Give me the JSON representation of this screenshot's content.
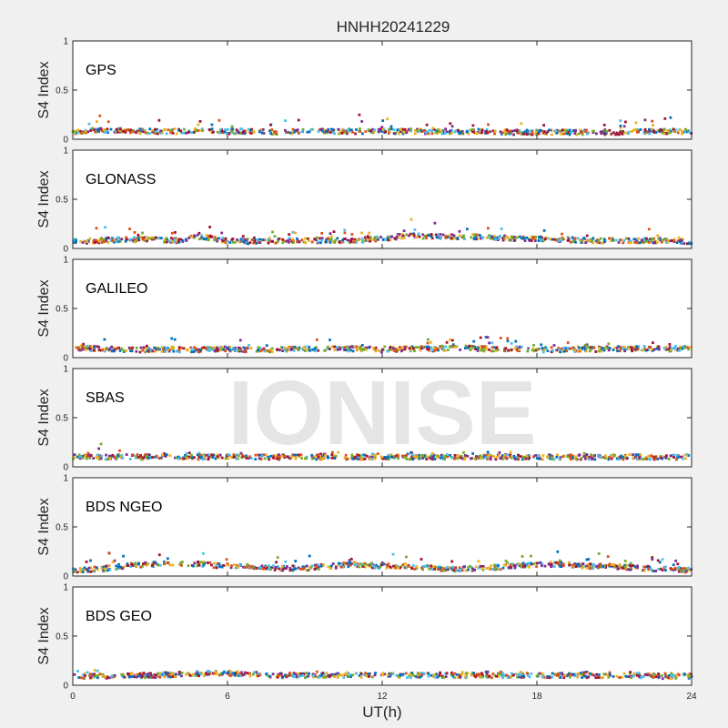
{
  "figure": {
    "title": "HNHH20241229",
    "xlabel": "UT(h)",
    "watermark": "IONISE"
  },
  "colors": [
    "#0072bd",
    "#d95319",
    "#edb120",
    "#7e2f8e",
    "#77ac30",
    "#4dbeee",
    "#a2142f"
  ],
  "chart_data": [
    {
      "type": "scatter",
      "panel": "GPS",
      "ylabel": "S4 Index",
      "xlim": [
        0,
        24
      ],
      "ylim": [
        0,
        1
      ],
      "xticks": [
        0,
        6,
        12,
        18,
        24
      ],
      "yticks": [
        0,
        0.5,
        1
      ],
      "series_profile": {
        "x": [
          0,
          1,
          2,
          3,
          4,
          5,
          6,
          7,
          8,
          9,
          10,
          11,
          12,
          13,
          14,
          15,
          16,
          17,
          18,
          19,
          20,
          21,
          22,
          23,
          24
        ],
        "typical_s4": [
          0.08,
          0.09,
          0.09,
          0.08,
          0.08,
          0.09,
          0.08,
          0.08,
          0.07,
          0.08,
          0.08,
          0.08,
          0.08,
          0.08,
          0.08,
          0.08,
          0.08,
          0.07,
          0.07,
          0.07,
          0.07,
          0.07,
          0.08,
          0.08,
          0.08
        ],
        "peak_s4": [
          0.14,
          0.28,
          0.26,
          0.22,
          0.2,
          0.22,
          0.2,
          0.22,
          0.2,
          0.2,
          0.22,
          0.26,
          0.22,
          0.2,
          0.18,
          0.17,
          0.2,
          0.18,
          0.17,
          0.16,
          0.16,
          0.18,
          0.22,
          0.24,
          0.16
        ]
      }
    },
    {
      "type": "scatter",
      "panel": "GLONASS",
      "ylabel": "S4 Index",
      "xlim": [
        0,
        24
      ],
      "ylim": [
        0,
        1
      ],
      "xticks": [
        0,
        6,
        12,
        18,
        24
      ],
      "yticks": [
        0,
        0.5,
        1
      ],
      "series_profile": {
        "x": [
          0,
          1,
          2,
          3,
          4,
          5,
          6,
          7,
          8,
          9,
          10,
          11,
          12,
          13,
          14,
          15,
          16,
          17,
          18,
          19,
          20,
          21,
          22,
          23,
          24
        ],
        "typical_s4": [
          0.07,
          0.08,
          0.09,
          0.09,
          0.08,
          0.12,
          0.08,
          0.07,
          0.08,
          0.08,
          0.08,
          0.08,
          0.1,
          0.13,
          0.12,
          0.12,
          0.12,
          0.1,
          0.1,
          0.09,
          0.08,
          0.08,
          0.08,
          0.08,
          0.07
        ],
        "peak_s4": [
          0.15,
          0.22,
          0.25,
          0.2,
          0.2,
          0.25,
          0.2,
          0.16,
          0.18,
          0.18,
          0.22,
          0.2,
          0.24,
          0.32,
          0.26,
          0.2,
          0.22,
          0.2,
          0.2,
          0.2,
          0.18,
          0.2,
          0.28,
          0.22,
          0.12
        ]
      }
    },
    {
      "type": "scatter",
      "panel": "GALILEO",
      "ylabel": "S4 Index",
      "xlim": [
        0,
        24
      ],
      "ylim": [
        0,
        1
      ],
      "xticks": [
        0,
        6,
        12,
        18,
        24
      ],
      "yticks": [
        0,
        0.5,
        1
      ],
      "series_profile": {
        "x": [
          0,
          1,
          2,
          3,
          4,
          5,
          6,
          7,
          8,
          9,
          10,
          11,
          12,
          13,
          14,
          15,
          16,
          17,
          18,
          19,
          20,
          21,
          22,
          23,
          24
        ],
        "typical_s4": [
          0.1,
          0.09,
          0.08,
          0.08,
          0.08,
          0.08,
          0.09,
          0.08,
          0.08,
          0.09,
          0.09,
          0.09,
          0.08,
          0.09,
          0.09,
          0.1,
          0.09,
          0.09,
          0.08,
          0.08,
          0.08,
          0.09,
          0.09,
          0.09,
          0.09
        ],
        "peak_s4": [
          0.18,
          0.28,
          0.16,
          0.14,
          0.22,
          0.16,
          0.18,
          0.24,
          0.2,
          0.18,
          0.2,
          0.16,
          0.16,
          0.16,
          0.2,
          0.2,
          0.22,
          0.2,
          0.16,
          0.16,
          0.14,
          0.16,
          0.16,
          0.16,
          0.16
        ]
      }
    },
    {
      "type": "scatter",
      "panel": "SBAS",
      "ylabel": "S4 Index",
      "xlim": [
        0,
        24
      ],
      "ylim": [
        0,
        1
      ],
      "xticks": [
        0,
        6,
        12,
        18,
        24
      ],
      "yticks": [
        0,
        0.5,
        1
      ],
      "series_profile": {
        "x": [
          0,
          1,
          2,
          3,
          4,
          5,
          6,
          7,
          8,
          9,
          10,
          11,
          12,
          13,
          14,
          15,
          16,
          17,
          18,
          19,
          20,
          21,
          22,
          23,
          24
        ],
        "typical_s4": [
          0.1,
          0.1,
          0.1,
          0.1,
          0.1,
          0.1,
          0.1,
          0.1,
          0.1,
          0.1,
          0.1,
          0.1,
          0.1,
          0.1,
          0.1,
          0.1,
          0.1,
          0.1,
          0.1,
          0.1,
          0.1,
          0.1,
          0.1,
          0.1,
          0.1
        ],
        "peak_s4": [
          0.15,
          0.25,
          0.16,
          0.15,
          0.15,
          0.15,
          0.15,
          0.15,
          0.15,
          0.17,
          0.15,
          0.15,
          0.15,
          0.15,
          0.15,
          0.15,
          0.15,
          0.15,
          0.15,
          0.15,
          0.15,
          0.15,
          0.15,
          0.15,
          0.17
        ]
      }
    },
    {
      "type": "scatter",
      "panel": "BDS NGEO",
      "ylabel": "S4 Index",
      "xlim": [
        0,
        24
      ],
      "ylim": [
        0,
        1
      ],
      "xticks": [
        0,
        6,
        12,
        18,
        24
      ],
      "yticks": [
        0,
        0.5,
        1
      ],
      "series_profile": {
        "x": [
          0,
          1,
          2,
          3,
          4,
          5,
          6,
          7,
          8,
          9,
          10,
          11,
          12,
          13,
          14,
          15,
          16,
          17,
          18,
          19,
          20,
          21,
          22,
          23,
          24
        ],
        "typical_s4": [
          0.06,
          0.07,
          0.1,
          0.12,
          0.12,
          0.12,
          0.1,
          0.1,
          0.08,
          0.08,
          0.1,
          0.12,
          0.1,
          0.1,
          0.08,
          0.07,
          0.08,
          0.1,
          0.12,
          0.12,
          0.1,
          0.1,
          0.08,
          0.07,
          0.06
        ],
        "peak_s4": [
          0.12,
          0.26,
          0.2,
          0.22,
          0.27,
          0.24,
          0.2,
          0.24,
          0.2,
          0.2,
          0.22,
          0.24,
          0.22,
          0.26,
          0.18,
          0.16,
          0.18,
          0.2,
          0.26,
          0.32,
          0.26,
          0.2,
          0.2,
          0.18,
          0.12
        ]
      }
    },
    {
      "type": "scatter",
      "panel": "BDS GEO",
      "ylabel": "S4 Index",
      "xlim": [
        0,
        24
      ],
      "ylim": [
        0,
        1
      ],
      "xticks": [
        0,
        6,
        12,
        18,
        24
      ],
      "yticks": [
        0,
        0.5,
        1
      ],
      "series_profile": {
        "x": [
          0,
          1,
          2,
          3,
          4,
          5,
          6,
          7,
          8,
          9,
          10,
          11,
          12,
          13,
          14,
          15,
          16,
          17,
          18,
          19,
          20,
          21,
          22,
          23,
          24
        ],
        "typical_s4": [
          0.09,
          0.09,
          0.1,
          0.1,
          0.11,
          0.12,
          0.12,
          0.11,
          0.1,
          0.1,
          0.1,
          0.1,
          0.1,
          0.1,
          0.1,
          0.1,
          0.1,
          0.1,
          0.1,
          0.1,
          0.1,
          0.1,
          0.1,
          0.09,
          0.09
        ],
        "peak_s4": [
          0.12,
          0.3,
          0.14,
          0.14,
          0.14,
          0.15,
          0.15,
          0.14,
          0.14,
          0.14,
          0.14,
          0.14,
          0.14,
          0.14,
          0.14,
          0.14,
          0.14,
          0.14,
          0.14,
          0.14,
          0.14,
          0.14,
          0.14,
          0.13,
          0.12
        ]
      }
    }
  ]
}
